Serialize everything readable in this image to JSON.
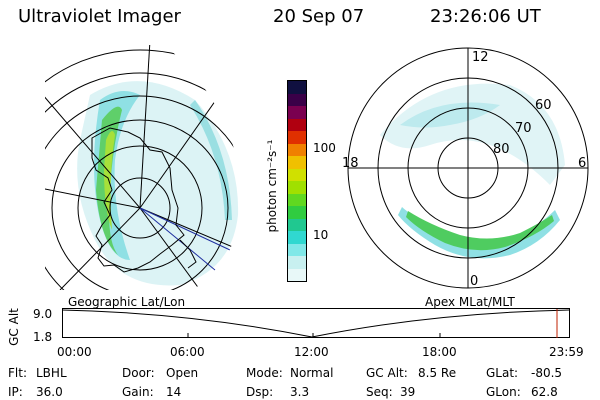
{
  "header": {
    "title": "Ultraviolet Imager",
    "date": "20 Sep 07",
    "time": "23:26:06 UT"
  },
  "colorbar": {
    "unit_label": "photon cm⁻²s⁻¹",
    "ticks": [
      "100",
      "10"
    ],
    "colors": [
      "#101040",
      "#3a0048",
      "#7a0050",
      "#b00010",
      "#e03000",
      "#f08000",
      "#f0c000",
      "#d0e000",
      "#a0e000",
      "#60d820",
      "#30cc40",
      "#20c890",
      "#30d8d0",
      "#80e8e8",
      "#c8f0f0",
      "#e8f8f8"
    ]
  },
  "left_map": {
    "caption": "Geographic Lat/Lon"
  },
  "right_map": {
    "caption": "Apex MLat/MLT",
    "mlt_labels": {
      "top": "12",
      "left": "18",
      "right": "6",
      "bottom": "0"
    },
    "lat_labels": [
      "60",
      "70",
      "80"
    ]
  },
  "altitude_plot": {
    "ylabel": "GC Alt",
    "yticks": [
      "9.0",
      "1.8"
    ],
    "xticks": [
      "00:00",
      "06:00",
      "12:00",
      "18:00",
      "23:59"
    ]
  },
  "footer": {
    "row1": [
      {
        "label": "Flt:",
        "value": "LBHL"
      },
      {
        "label": "Door:",
        "value": "Open"
      },
      {
        "label": "Mode:",
        "value": "Normal"
      },
      {
        "label": "GC Alt:",
        "value": "8.5 Re"
      },
      {
        "label": "GLat:",
        "value": "-80.5"
      }
    ],
    "row2": [
      {
        "label": "IP:",
        "value": "36.0"
      },
      {
        "label": "Gain:",
        "value": "14"
      },
      {
        "label": "Dsp:",
        "value": "3.3"
      },
      {
        "label": "Seq:",
        "value": "39"
      },
      {
        "label": "GLon:",
        "value": "62.8"
      }
    ]
  }
}
